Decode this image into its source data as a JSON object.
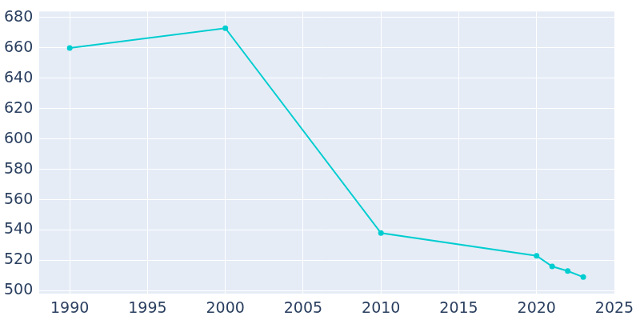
{
  "chart_data": {
    "type": "line",
    "x": [
      1990,
      2000,
      2010,
      2020,
      2021,
      2022,
      2023
    ],
    "values": [
      660,
      673,
      538,
      523,
      516,
      513,
      509
    ],
    "color": "#00cdd0",
    "marker": "circle",
    "xlim": [
      1988,
      2025
    ],
    "xticks": [
      1990,
      1995,
      2000,
      2005,
      2010,
      2015,
      2020,
      2025
    ],
    "ylim": [
      498,
      684
    ],
    "yticks": [
      500,
      520,
      540,
      560,
      580,
      600,
      620,
      640,
      660,
      680
    ],
    "grid": true
  }
}
